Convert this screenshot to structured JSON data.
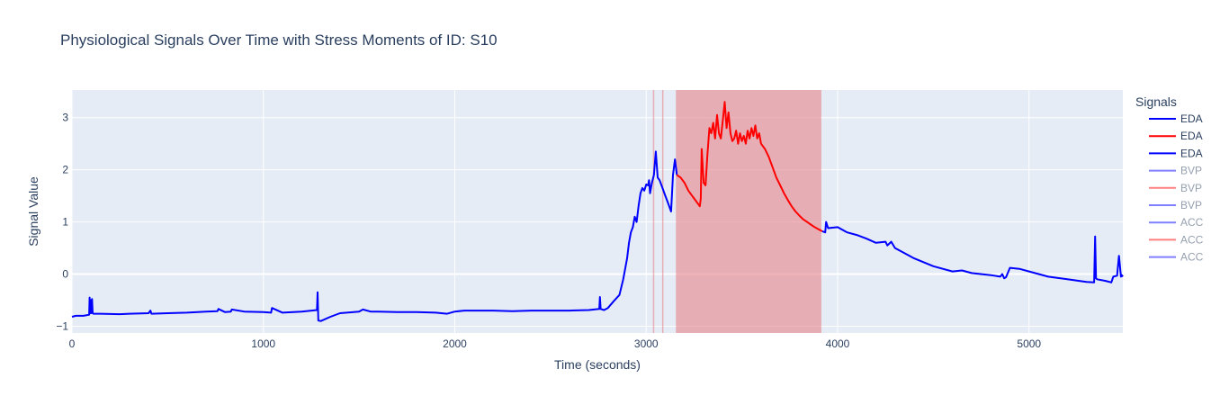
{
  "chart_data": {
    "type": "line",
    "title": "Physiological Signals Over Time with Stress Moments of ID: S10",
    "xlabel": "Time (seconds)",
    "ylabel": "Signal Value",
    "xlim": [
      0,
      5490
    ],
    "ylim": [
      -1.13,
      3.53
    ],
    "x_ticks": [
      0,
      1000,
      2000,
      3000,
      4000,
      5000
    ],
    "x_tick_labels": [
      "0",
      "1000",
      "2000",
      "3000",
      "4000",
      "5000"
    ],
    "y_ticks": [
      -1,
      0,
      1,
      2,
      3
    ],
    "y_tick_labels": [
      "−1",
      "0",
      "1",
      "2",
      "3"
    ],
    "grid": true,
    "legend_title": "Signals",
    "legend_position": "right",
    "legend": [
      {
        "label": "EDA",
        "color": "#0000ff",
        "faded": false
      },
      {
        "label": "EDA",
        "color": "#ff0000",
        "faded": false
      },
      {
        "label": "EDA",
        "color": "#0000ff",
        "faded": false
      },
      {
        "label": "BVP",
        "color": "#0000ff",
        "faded": true
      },
      {
        "label": "BVP",
        "color": "#ff0000",
        "faded": true
      },
      {
        "label": "BVP",
        "color": "#0000ff",
        "faded": true
      },
      {
        "label": "ACC",
        "color": "#0000ff",
        "faded": true
      },
      {
        "label": "ACC",
        "color": "#ff0000",
        "faded": true
      },
      {
        "label": "ACC",
        "color": "#0000ff",
        "faded": true
      }
    ],
    "stress_regions": [
      {
        "start": 3035,
        "end": 3042
      },
      {
        "start": 3083,
        "end": 3090
      },
      {
        "start": 3155,
        "end": 3915
      }
    ],
    "stress_color": "#e8838a",
    "series": [
      {
        "label": "EDA",
        "color": "#0000ff",
        "x": [
          0,
          20,
          60,
          90,
          92,
          95,
          98,
          100,
          105,
          108,
          112,
          150,
          250,
          300,
          400,
          410,
          415,
          500,
          600,
          700,
          760,
          765,
          800,
          830,
          835,
          900,
          1000,
          1040,
          1045,
          1100,
          1200,
          1280,
          1283,
          1287,
          1300,
          1350,
          1400,
          1500,
          1520,
          1560,
          1600,
          1700,
          1800,
          1900,
          1960,
          2000,
          2050,
          2100,
          2200,
          2300,
          2400,
          2500,
          2600,
          2700,
          2755,
          2758,
          2762,
          2780,
          2800,
          2830,
          2860,
          2880,
          2900,
          2910,
          2920,
          2930,
          2940,
          2950,
          2960,
          2970,
          2980,
          2990,
          3000,
          3010,
          3015,
          3020,
          3030,
          3040,
          3050,
          3060,
          3070,
          3080,
          3090,
          3100,
          3110,
          3120,
          3130,
          3140,
          3150,
          3160
        ],
        "y": [
          -0.82,
          -0.8,
          -0.8,
          -0.78,
          -0.45,
          -0.75,
          -0.5,
          -0.75,
          -0.48,
          -0.75,
          -0.76,
          -0.76,
          -0.77,
          -0.76,
          -0.75,
          -0.7,
          -0.76,
          -0.75,
          -0.74,
          -0.72,
          -0.71,
          -0.67,
          -0.73,
          -0.72,
          -0.68,
          -0.72,
          -0.73,
          -0.74,
          -0.65,
          -0.74,
          -0.72,
          -0.69,
          -0.35,
          -0.89,
          -0.9,
          -0.82,
          -0.75,
          -0.72,
          -0.68,
          -0.72,
          -0.72,
          -0.73,
          -0.73,
          -0.74,
          -0.76,
          -0.72,
          -0.7,
          -0.7,
          -0.7,
          -0.71,
          -0.7,
          -0.7,
          -0.7,
          -0.69,
          -0.67,
          -0.44,
          -0.67,
          -0.69,
          -0.65,
          -0.52,
          -0.4,
          -0.1,
          0.3,
          0.6,
          0.8,
          0.9,
          1.1,
          1.0,
          1.3,
          1.55,
          1.65,
          1.6,
          1.72,
          1.7,
          1.8,
          1.55,
          1.75,
          1.9,
          2.35,
          1.85,
          1.8,
          1.7,
          1.6,
          1.5,
          1.4,
          1.3,
          1.2,
          1.9,
          2.2,
          1.9
        ]
      },
      {
        "label": "EDA",
        "color": "#ff0000",
        "x": [
          3160,
          3180,
          3200,
          3220,
          3240,
          3260,
          3270,
          3280,
          3285,
          3290,
          3300,
          3310,
          3320,
          3330,
          3340,
          3350,
          3360,
          3370,
          3380,
          3390,
          3400,
          3410,
          3420,
          3430,
          3440,
          3450,
          3460,
          3470,
          3480,
          3490,
          3500,
          3510,
          3520,
          3530,
          3540,
          3550,
          3560,
          3570,
          3580,
          3590,
          3600,
          3620,
          3640,
          3660,
          3680,
          3700,
          3720,
          3740,
          3760,
          3780,
          3800,
          3820,
          3840,
          3860,
          3880,
          3900,
          3920
        ],
        "y": [
          1.9,
          1.85,
          1.75,
          1.6,
          1.5,
          1.4,
          1.35,
          1.3,
          1.45,
          2.4,
          1.75,
          1.7,
          2.3,
          2.8,
          2.7,
          2.9,
          2.6,
          3.05,
          2.7,
          2.6,
          2.95,
          3.3,
          2.8,
          3.1,
          2.7,
          2.55,
          2.6,
          2.75,
          2.5,
          2.7,
          2.55,
          2.65,
          2.5,
          2.75,
          2.6,
          2.8,
          2.65,
          2.85,
          2.6,
          2.7,
          2.5,
          2.4,
          2.25,
          2.05,
          1.85,
          1.7,
          1.55,
          1.42,
          1.3,
          1.2,
          1.12,
          1.05,
          1.0,
          0.95,
          0.9,
          0.86,
          0.82
        ]
      },
      {
        "label": "EDA",
        "color": "#0000ff",
        "x": [
          3920,
          3935,
          3940,
          3950,
          4000,
          4050,
          4100,
          4150,
          4200,
          4250,
          4260,
          4280,
          4300,
          4350,
          4400,
          4500,
          4600,
          4650,
          4700,
          4800,
          4850,
          4860,
          4870,
          4880,
          4900,
          4950,
          5000,
          5100,
          5200,
          5300,
          5340,
          5345,
          5350,
          5355,
          5400,
          5430,
          5440,
          5460,
          5470,
          5480,
          5485,
          5490
        ],
        "y": [
          0.82,
          0.8,
          1.0,
          0.88,
          0.9,
          0.8,
          0.75,
          0.68,
          0.6,
          0.62,
          0.55,
          0.62,
          0.5,
          0.4,
          0.3,
          0.15,
          0.05,
          0.07,
          0.02,
          -0.02,
          -0.05,
          0.0,
          -0.08,
          -0.06,
          0.12,
          0.1,
          0.05,
          -0.05,
          -0.1,
          -0.15,
          -0.16,
          0.72,
          -0.08,
          -0.1,
          -0.13,
          -0.16,
          -0.05,
          -0.03,
          0.35,
          -0.05,
          -0.02,
          -0.05
        ]
      }
    ]
  }
}
